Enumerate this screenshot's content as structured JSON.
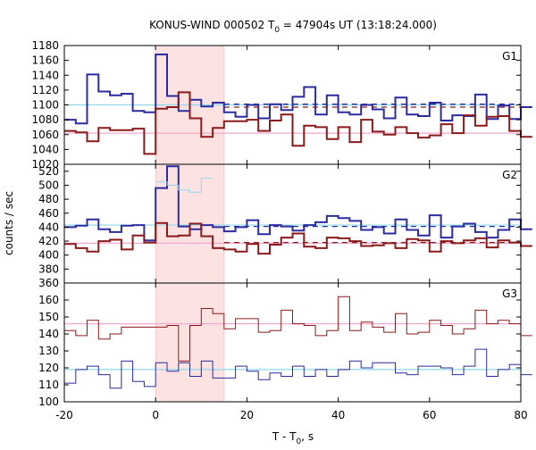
{
  "chart_data": {
    "type": "line",
    "title_main": "KONUS-WIND 000502 T",
    "title_sub": "0",
    "title_rest": " = 47904s UT (13:18:24.000)",
    "xlabel_main": "T - T",
    "xlabel_sub": "0",
    "xlabel_rest": ", s",
    "ylabel": "counts / sec",
    "xlim": [
      -20,
      80
    ],
    "xticks": [
      -20,
      0,
      20,
      40,
      60,
      80
    ],
    "highlight": {
      "start": 0,
      "end": 15
    },
    "colors": {
      "blue": "#2b2ba0",
      "red": "#8b1a1a",
      "cyan": "#8fd8ec",
      "pink": "#f2a8d0",
      "highlight": "#fde2e2"
    },
    "panels": [
      {
        "name": "G1",
        "ylim": [
          1020,
          1180
        ],
        "yticks": [
          1020,
          1040,
          1060,
          1080,
          1100,
          1120,
          1140,
          1160,
          1180
        ],
        "blue_level": 1100,
        "red_level": 1062,
        "blue_dashed": {
          "start": 15,
          "value": 1101
        },
        "red_dashed": {
          "start": 15,
          "value": 1097
        },
        "series": [
          {
            "color": "blue",
            "width": 2,
            "values": [
              1080,
              1075,
              1141,
              1118,
              1113,
              1115,
              1092,
              1090,
              1168,
              1112,
              1092,
              1107,
              1098,
              1103,
              1090,
              1084,
              1100,
              1082,
              1101,
              1093,
              1111,
              1124,
              1087,
              1113,
              1090,
              1087,
              1100,
              1094,
              1082,
              1110,
              1087,
              1085,
              1103,
              1079,
              1086,
              1085,
              1114,
              1081,
              1099,
              1081,
              1097
            ]
          },
          {
            "color": "red",
            "width": 2,
            "values": [
              1065,
              1063,
              1051,
              1069,
              1066,
              1066,
              1068,
              1034,
              1095,
              1097,
              1117,
              1082,
              1057,
              1069,
              1078,
              1078,
              1080,
              1065,
              1079,
              1087,
              1045,
              1072,
              1070,
              1054,
              1070,
              1050,
              1080,
              1064,
              1060,
              1070,
              1062,
              1056,
              1059,
              1074,
              1062,
              1086,
              1072,
              1084,
              1085,
              1065,
              1057
            ]
          }
        ],
        "cyan_width": 2
      },
      {
        "name": "G2",
        "ylim": [
          360,
          530
        ],
        "yticks": [
          360,
          380,
          400,
          420,
          440,
          460,
          480,
          500,
          520
        ],
        "blue_level": 443,
        "red_level": 417,
        "blue_dashed": {
          "start": 15,
          "value": 441
        },
        "red_dashed": {
          "start": 15,
          "value": 418
        },
        "series": [
          {
            "color": "blue",
            "width": 2,
            "values": [
              440,
              442,
              451,
              437,
              433,
              442,
              443,
              421,
              496,
              527,
              441,
              437,
              443,
              440,
              434,
              440,
              450,
              430,
              443,
              441,
              435,
              443,
              447,
              456,
              453,
              449,
              436,
              440,
              431,
              451,
              436,
              428,
              457,
              425,
              441,
              445,
              433,
              425,
              436,
              451,
              437
            ]
          },
          {
            "color": "red",
            "width": 2,
            "values": [
              416,
              410,
              405,
              420,
              422,
              408,
              428,
              418,
              446,
              427,
              428,
              445,
              427,
              410,
              408,
              405,
              416,
              402,
              415,
              425,
              431,
              412,
              410,
              425,
              424,
              420,
              413,
              414,
              417,
              410,
              423,
              421,
              405,
              420,
              417,
              421,
              424,
              411,
              421,
              418,
              413
            ]
          },
          {
            "color": "cyan",
            "width": 1,
            "values": [
              null,
              null,
              null,
              null,
              null,
              null,
              null,
              null,
              505,
              500,
              493,
              490,
              510,
              null,
              null,
              null,
              null,
              null,
              null,
              null,
              null,
              null,
              null,
              null,
              null,
              null,
              null,
              null,
              null,
              null,
              null,
              null,
              null,
              null,
              null,
              null,
              null,
              null,
              null,
              null,
              null
            ]
          }
        ],
        "cyan_width": 1
      },
      {
        "name": "G3",
        "ylim": [
          100,
          170
        ],
        "yticks": [
          100,
          110,
          120,
          130,
          140,
          150,
          160
        ],
        "blue_level": 119,
        "red_level": 146,
        "blue_dashed": null,
        "red_dashed": null,
        "series": [
          {
            "color": "blue",
            "width": 1,
            "values": [
              111,
              119,
              121,
              116,
              108,
              124,
              112,
              109,
              123,
              118,
              123,
              115,
              124,
              114,
              114,
              121,
              118,
              113,
              117,
              115,
              121,
              115,
              119,
              115,
              119,
              124,
              120,
              123,
              123,
              117,
              116,
              121,
              121,
              120,
              116,
              121,
              131,
              115,
              119,
              122,
              116
            ]
          },
          {
            "color": "red",
            "width": 1,
            "values": [
              142,
              139,
              148,
              137,
              140,
              144,
              144,
              144,
              144,
              145,
              124,
              145,
              155,
              152,
              143,
              149,
              149,
              141,
              142,
              154,
              146,
              145,
              139,
              142,
              162,
              142,
              147,
              144,
              141,
              152,
              140,
              141,
              148,
              145,
              140,
              143,
              154,
              146,
              148,
              146,
              139
            ]
          }
        ],
        "cyan_width": 1
      }
    ]
  }
}
